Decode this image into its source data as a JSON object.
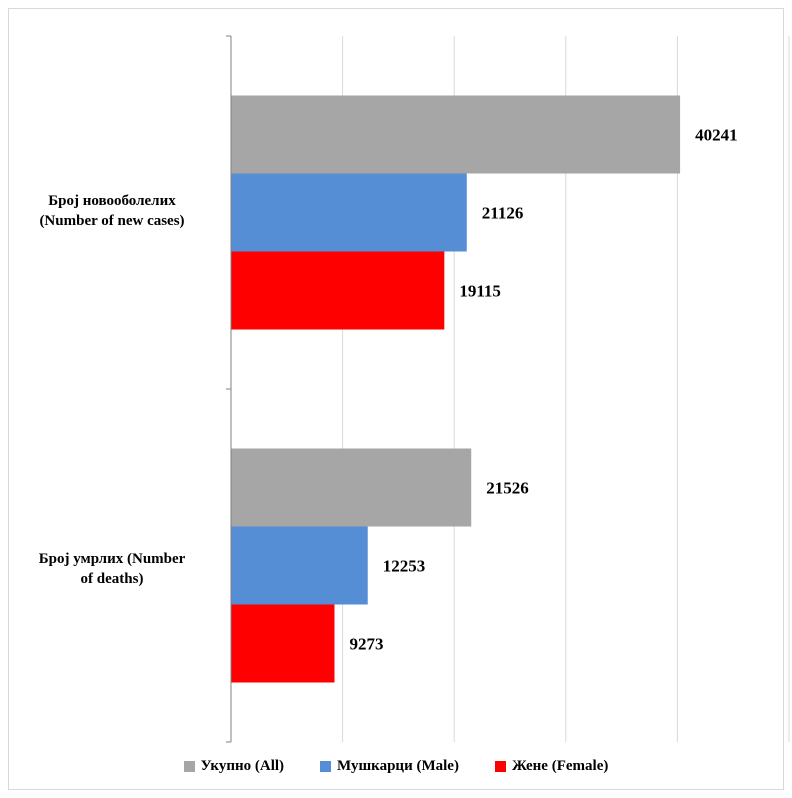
{
  "chart_data": {
    "type": "bar",
    "orientation": "horizontal",
    "categories": [
      "Број новооболелих\n(Number  of new cases)",
      "Број умрлих (Number\nof deaths)"
    ],
    "series": [
      {
        "name": "Укупно (All)",
        "color": "#a6a6a6",
        "values": [
          40241,
          21526
        ]
      },
      {
        "name": "Мушкарци (Male)",
        "color": "#558ed5",
        "values": [
          21126,
          12253
        ]
      },
      {
        "name": "Жене (Female)",
        "color": "#ff0000",
        "values": [
          19115,
          9273
        ]
      }
    ],
    "xlim": [
      0,
      50000
    ],
    "grid": true,
    "legend": "bottom",
    "data_labels": true
  }
}
